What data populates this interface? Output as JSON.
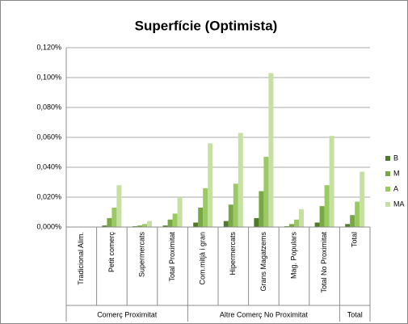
{
  "chart_data": {
    "type": "bar",
    "title": "Superfície (Optimista)",
    "groups": [
      {
        "label": "Comerç Proximitat",
        "categories": [
          "Tradicional Alim.",
          "Petit comerç",
          "Supermercats",
          "Total Proximitat"
        ]
      },
      {
        "label": "Altre Comerç No Proximitat",
        "categories": [
          "Com.mitjà i gran",
          "Hipermercats",
          "Grans Magatzems",
          "Mag. Populars",
          "Total No Proximitat"
        ]
      },
      {
        "label": "Total",
        "categories": [
          "Total"
        ]
      }
    ],
    "series": [
      {
        "name": "B",
        "color": "#4f7a28",
        "values": [
          0,
          0.001,
          0.0005,
          0.001,
          0.003,
          0.004,
          0.006,
          0.0005,
          0.003,
          0.002
        ]
      },
      {
        "name": "M",
        "color": "#77a844",
        "values": [
          0,
          0.006,
          0.001,
          0.005,
          0.013,
          0.015,
          0.024,
          0.002,
          0.014,
          0.008
        ]
      },
      {
        "name": "A",
        "color": "#9bc962",
        "values": [
          0,
          0.013,
          0.002,
          0.009,
          0.026,
          0.029,
          0.047,
          0.005,
          0.028,
          0.017
        ]
      },
      {
        "name": "MA",
        "color": "#c6e0a4",
        "values": [
          0,
          0.028,
          0.004,
          0.02,
          0.056,
          0.063,
          0.103,
          0.012,
          0.061,
          0.037
        ]
      }
    ],
    "ylim": [
      0,
      0.12
    ],
    "yticks": [
      {
        "value": 0,
        "label": "0,000%"
      },
      {
        "value": 0.02,
        "label": "0,020%"
      },
      {
        "value": 0.04,
        "label": "0,040%"
      },
      {
        "value": 0.06,
        "label": "0,060%"
      },
      {
        "value": 0.08,
        "label": "0,080%"
      },
      {
        "value": 0.1,
        "label": "0,100%"
      },
      {
        "value": 0.12,
        "label": "0,120%"
      }
    ],
    "grid": true,
    "legend": "right"
  }
}
